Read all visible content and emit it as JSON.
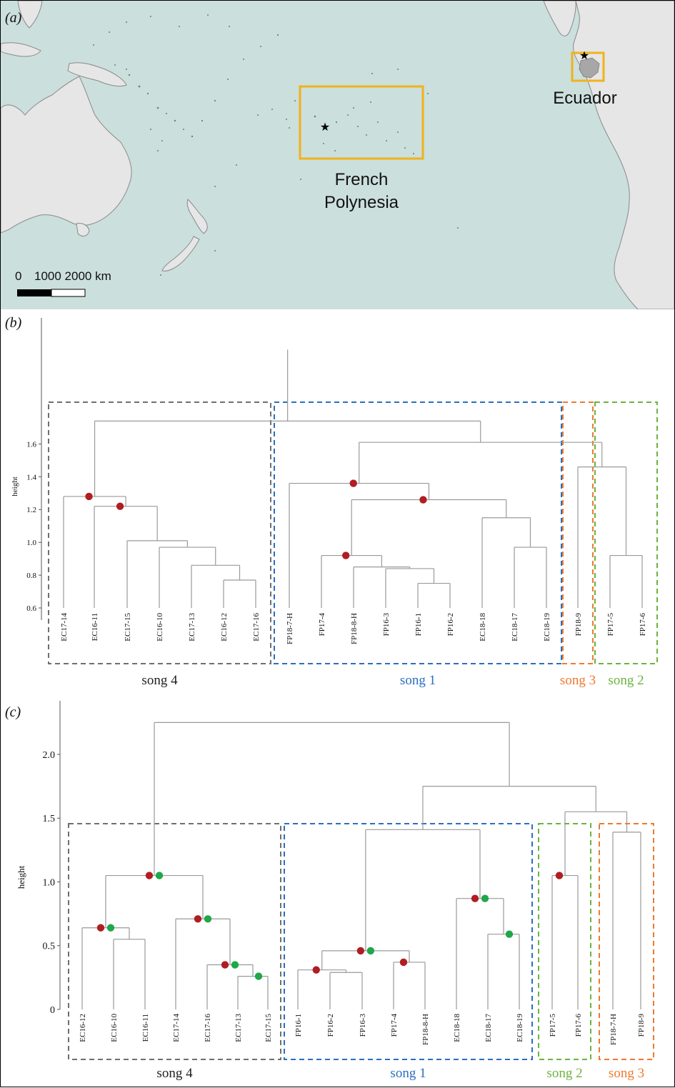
{
  "colors": {
    "ocean": "#cbdfdc",
    "land": "#e6e6e6",
    "box": "#f1b21c",
    "branch": "#9a9a9a",
    "red_dot": "#b01d22",
    "green_dot": "#1fa74a",
    "song4": "#6f6f6f",
    "song1": "#2b6ebf",
    "song2": "#6cb33f",
    "song3": "#ee7a30"
  },
  "map": {
    "panel_label": "(a)",
    "region_labels": [
      "Ecuador",
      "French",
      "Polynesia"
    ],
    "scale": {
      "zero": "0",
      "labels": "1000 2000 km"
    },
    "markers": [
      "star-icon",
      "star-icon"
    ]
  },
  "chart_data": [
    {
      "type": "dendrogram",
      "panel_label": "(b)",
      "ylabel": "height",
      "yticks": [
        "0.6",
        "0.8",
        "1.0",
        "1.2",
        "1.4",
        "1.6"
      ],
      "ylim": [
        0.6,
        1.7
      ],
      "leaves": [
        "EC17-14",
        "EC16-11",
        "EC17-15",
        "EC16-10",
        "EC17-13",
        "EC16-12",
        "EC17-16",
        "FP18-7-H",
        "FP17-4",
        "FP18-8-H",
        "FP16-3",
        "FP16-1",
        "FP16-2",
        "EC18-18",
        "EC18-17",
        "EC18-19",
        "FP18-9",
        "FP17-5",
        "FP17-6"
      ],
      "merges": [
        {
          "left": 5,
          "right": 6,
          "height": 0.77
        },
        {
          "left": 4,
          "right": 19,
          "height": 0.86
        },
        {
          "left": 3,
          "right": 20,
          "height": 0.97
        },
        {
          "left": 2,
          "right": 21,
          "height": 1.01
        },
        {
          "left": 1,
          "right": 22,
          "height": 1.22,
          "red": true
        },
        {
          "left": 0,
          "right": 23,
          "height": 1.28,
          "red": true
        },
        {
          "left": 11,
          "right": 12,
          "height": 0.75
        },
        {
          "left": 10,
          "right": 25,
          "height": 0.84
        },
        {
          "left": 9,
          "right": 26,
          "height": 0.85
        },
        {
          "left": 8,
          "right": 27,
          "height": 0.92,
          "red": true
        },
        {
          "left": 14,
          "right": 15,
          "height": 0.97
        },
        {
          "left": 13,
          "right": 29,
          "height": 1.15
        },
        {
          "left": 28,
          "right": 30,
          "height": 1.26,
          "red": true
        },
        {
          "left": 7,
          "right": 31,
          "height": 1.36,
          "red": true
        },
        {
          "left": 17,
          "right": 18,
          "height": 0.92
        },
        {
          "left": 16,
          "right": 33,
          "height": 1.46
        },
        {
          "left": 32,
          "right": 34,
          "height": 1.61
        },
        {
          "left": 24,
          "right": 35,
          "height": 1.74
        }
      ],
      "groups": [
        {
          "label": "song 4",
          "first": 0,
          "last": 6,
          "color": "#6f6f6f"
        },
        {
          "label": "song 1",
          "first": 7,
          "last": 15,
          "color": "#2b6ebf"
        },
        {
          "label": "song 3",
          "first": 16,
          "last": 16,
          "color": "#ee7a30"
        },
        {
          "label": "song 2",
          "first": 17,
          "last": 18,
          "color": "#6cb33f"
        }
      ]
    },
    {
      "type": "dendrogram",
      "panel_label": "(c)",
      "ylabel": "height",
      "yticks": [
        "0",
        "0.5",
        "1.0",
        "1.5",
        "2.0"
      ],
      "ylim": [
        0,
        2.3
      ],
      "leaves": [
        "EC16-12",
        "EC16-10",
        "EC16-11",
        "EC17-14",
        "EC17-16",
        "EC17-13",
        "EC17-15",
        "FP16-1",
        "FP16-2",
        "FP16-3",
        "FP17-4",
        "FP18-8-H",
        "EC18-18",
        "EC18-17",
        "EC18-19",
        "FP17-5",
        "FP17-6",
        "FP18-7-H",
        "FP18-9"
      ],
      "merges": [
        {
          "left": 1,
          "right": 2,
          "height": 0.55
        },
        {
          "left": 0,
          "right": 19,
          "height": 0.64,
          "red": true,
          "green": true
        },
        {
          "left": 5,
          "right": 6,
          "height": 0.26,
          "green": true
        },
        {
          "left": 4,
          "right": 21,
          "height": 0.35,
          "red": true,
          "green": true
        },
        {
          "left": 3,
          "right": 22,
          "height": 0.71,
          "red": true,
          "green": true
        },
        {
          "left": 20,
          "right": 23,
          "height": 1.05,
          "red": true,
          "green": true
        },
        {
          "left": 8,
          "right": 9,
          "height": 0.29
        },
        {
          "left": 7,
          "right": 25,
          "height": 0.31,
          "red": true
        },
        {
          "left": 10,
          "right": 11,
          "height": 0.37,
          "red": true
        },
        {
          "left": 26,
          "right": 27,
          "height": 0.46,
          "red": true,
          "green": true
        },
        {
          "left": 13,
          "right": 14,
          "height": 0.59,
          "green": true
        },
        {
          "left": 12,
          "right": 29,
          "height": 0.87,
          "red": true,
          "green": true
        },
        {
          "left": 28,
          "right": 30,
          "height": 1.41
        },
        {
          "left": 15,
          "right": 16,
          "height": 1.05,
          "red": true
        },
        {
          "left": 17,
          "right": 18,
          "height": 1.39
        },
        {
          "left": 32,
          "right": 33,
          "height": 1.55
        },
        {
          "left": 31,
          "right": 34,
          "height": 1.75
        },
        {
          "left": 24,
          "right": 35,
          "height": 2.25
        }
      ],
      "groups": [
        {
          "label": "song 4",
          "first": 0,
          "last": 6,
          "color": "#6f6f6f"
        },
        {
          "label": "song 1",
          "first": 7,
          "last": 14,
          "color": "#2b6ebf"
        },
        {
          "label": "song 2",
          "first": 15,
          "last": 16,
          "color": "#6cb33f"
        },
        {
          "label": "song 3",
          "first": 17,
          "last": 18,
          "color": "#ee7a30"
        }
      ]
    }
  ]
}
